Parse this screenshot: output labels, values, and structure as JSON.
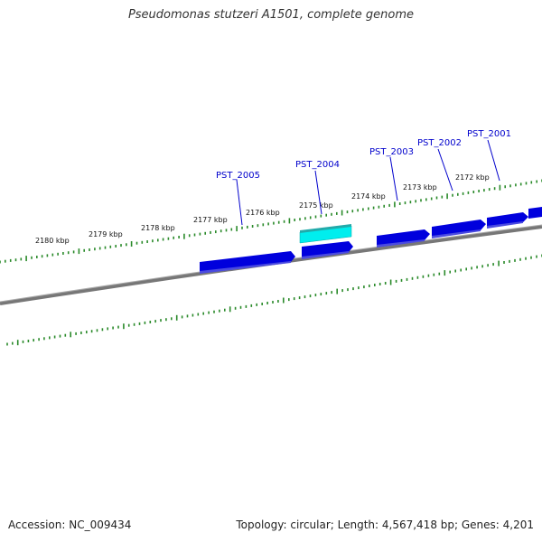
{
  "header": {
    "title": "Pseudomonas stutzeri A1501, complete genome"
  },
  "footer": {
    "accession": "Accession: NC_009434",
    "summary": "Topology: circular; Length: 4,567,418 bp; Genes: 4,201"
  },
  "map": {
    "tick_labels": [
      "2180 kbp",
      "2179 kbp",
      "2178 kbp",
      "2177 kbp",
      "2176 kbp",
      "2175 kbp",
      "2174 kbp",
      "2173 kbp",
      "2172 kbp"
    ],
    "gene_labels": [
      "PST_2005",
      "PST_2004",
      "PST_2003",
      "PST_2002",
      "PST_2001"
    ],
    "colors": {
      "backbone": "#777777",
      "gene_forward": "#0000dd",
      "gene_highlight": "#00eeee",
      "ticks": "#2a8a2a",
      "gene_label": "#0000cc"
    }
  }
}
